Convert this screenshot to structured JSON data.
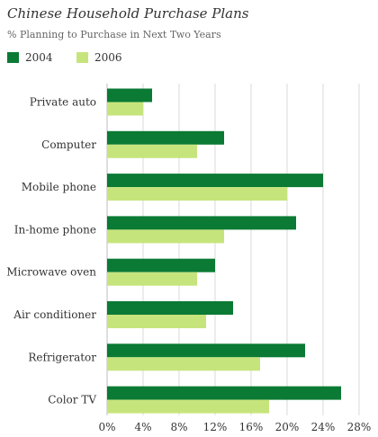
{
  "chart_data": {
    "type": "bar",
    "orientation": "horizontal",
    "title": "Chinese Household Purchase Plans",
    "subtitle": "% Planning to Purchase in Next Two Years",
    "categories": [
      "Private auto",
      "Computer",
      "Mobile phone",
      "In-home phone",
      "Microwave oven",
      "Air conditioner",
      "Refrigerator",
      "Color TV"
    ],
    "series": [
      {
        "name": "2004",
        "color": "#0a7a34",
        "values": [
          5,
          13,
          24,
          21,
          12,
          14,
          22,
          26
        ]
      },
      {
        "name": "2006",
        "color": "#c6e47c",
        "values": [
          4,
          10,
          20,
          13,
          10,
          11,
          17,
          18
        ]
      }
    ],
    "xlim": [
      0,
      28
    ],
    "x_ticks": [
      0,
      4,
      8,
      12,
      16,
      20,
      24,
      28
    ],
    "x_tick_suffix": "%",
    "grid": true,
    "legend_position": "top-left",
    "colors": {
      "grid": "#d9d9d9",
      "text": "#333333",
      "subtitle": "#666666"
    }
  }
}
